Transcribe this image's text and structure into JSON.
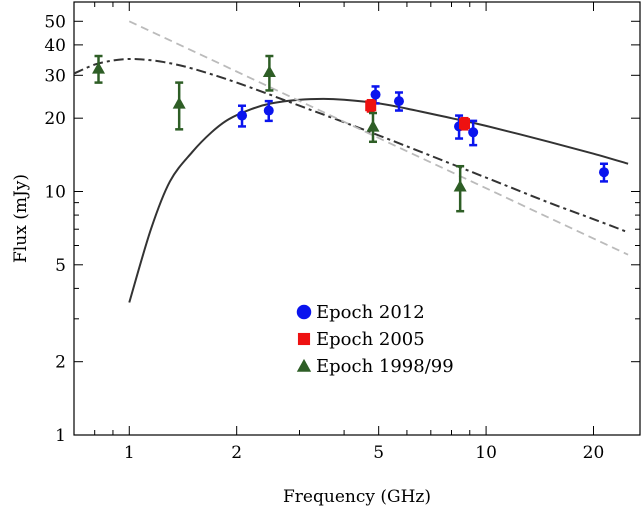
{
  "chart_data": {
    "type": "scatter",
    "title": "",
    "xlabel": "Frequency (GHz)",
    "ylabel": "Flux (mJy)",
    "xscale": "log",
    "yscale": "log",
    "xlim": [
      0.7,
      27
    ],
    "ylim": [
      1,
      60
    ],
    "x_ticks": [
      1,
      2,
      5,
      10,
      20
    ],
    "x_tick_labels": [
      "1",
      "2",
      "5",
      "10",
      "20"
    ],
    "y_ticks": [
      1,
      2,
      5,
      10,
      20,
      30,
      40,
      50
    ],
    "y_tick_labels": [
      "1",
      "2",
      "5",
      "10",
      "20",
      "30",
      "40",
      "50"
    ],
    "grid": false,
    "legend_position": "lower-center",
    "series": [
      {
        "name": "Epoch 2012",
        "marker": "circle",
        "color": "#0a14ee",
        "points": [
          {
            "x": 2.07,
            "y": 20.5,
            "yerr_low": 2.0,
            "yerr_high": 2.0
          },
          {
            "x": 2.46,
            "y": 21.5,
            "yerr_low": 2.0,
            "yerr_high": 2.0
          },
          {
            "x": 4.9,
            "y": 25.0,
            "yerr_low": 2.0,
            "yerr_high": 2.0
          },
          {
            "x": 5.7,
            "y": 23.5,
            "yerr_low": 2.0,
            "yerr_high": 2.0
          },
          {
            "x": 8.4,
            "y": 18.5,
            "yerr_low": 2.0,
            "yerr_high": 2.0
          },
          {
            "x": 9.2,
            "y": 17.5,
            "yerr_low": 2.0,
            "yerr_high": 2.0
          },
          {
            "x": 21.4,
            "y": 12.0,
            "yerr_low": 1.0,
            "yerr_high": 1.0
          }
        ]
      },
      {
        "name": "Epoch 2005",
        "marker": "square",
        "color": "#ee1111",
        "points": [
          {
            "x": 4.75,
            "y": 22.5,
            "yerr_low": 1.2,
            "yerr_high": 1.2
          },
          {
            "x": 8.7,
            "y": 19.0,
            "yerr_low": 1.0,
            "yerr_high": 1.0
          }
        ]
      },
      {
        "name": "Epoch 1998/99",
        "marker": "triangle",
        "color": "#2e5e26",
        "points": [
          {
            "x": 0.82,
            "y": 32.0,
            "yerr_low": 4.0,
            "yerr_high": 4.0
          },
          {
            "x": 1.38,
            "y": 23.0,
            "yerr_low": 5.0,
            "yerr_high": 5.0
          },
          {
            "x": 2.47,
            "y": 31.0,
            "yerr_low": 5.0,
            "yerr_high": 5.0
          },
          {
            "x": 4.82,
            "y": 18.5,
            "yerr_low": 2.5,
            "yerr_high": 2.5
          },
          {
            "x": 8.46,
            "y": 10.5,
            "yerr_low": 2.2,
            "yerr_high": 2.2
          }
        ]
      }
    ],
    "model_curves": [
      {
        "style": "solid",
        "color": "#333333",
        "x": [
          1.0,
          1.15,
          1.3,
          1.5,
          1.7,
          1.9,
          2.2,
          2.5,
          3.0,
          3.5,
          4.0,
          5.0,
          6.0,
          8.0,
          10.0,
          15.0,
          20.0,
          25.0
        ],
        "y": [
          3.5,
          7.0,
          11.0,
          14.5,
          17.5,
          19.8,
          21.8,
          23.0,
          23.8,
          24.0,
          23.8,
          23.0,
          21.9,
          20.0,
          18.6,
          16.0,
          14.3,
          13.0
        ]
      },
      {
        "style": "dash-dot",
        "color": "#333333",
        "x": [
          0.7,
          0.8,
          0.9,
          1.0,
          1.1,
          1.25,
          1.5,
          2.0,
          3.0,
          5.0,
          10.0,
          15.0,
          20.0,
          25.0
        ],
        "y": [
          30.5,
          33.2,
          34.5,
          35.0,
          34.8,
          34.0,
          32.0,
          28.0,
          22.5,
          17.0,
          11.4,
          9.0,
          7.7,
          6.8
        ]
      },
      {
        "style": "dashed",
        "color": "#bbbbbb",
        "x": [
          1.0,
          25.0
        ],
        "y": [
          50.0,
          5.5
        ]
      }
    ]
  }
}
